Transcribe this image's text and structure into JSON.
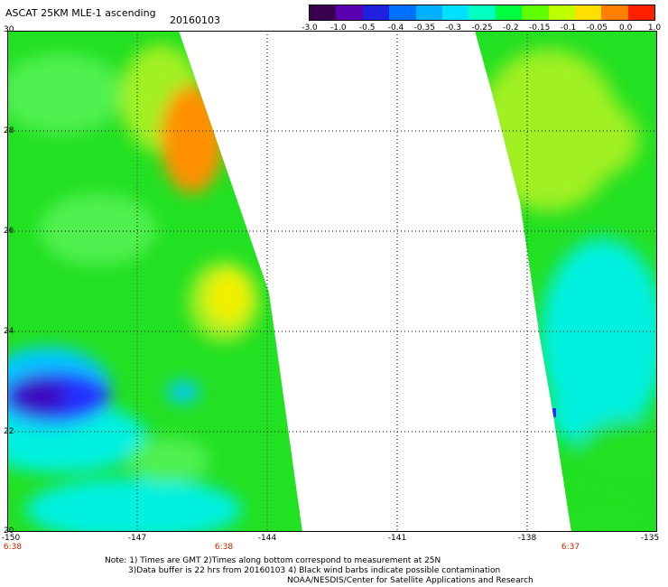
{
  "header": {
    "title": "ASCAT 25KM MLE-1 ascending",
    "date": "20160103"
  },
  "colorbar": {
    "labels": [
      "-3.0",
      "-1.0",
      "-0.5",
      "-0.4",
      "-0.35",
      "-0.3",
      "-0.25",
      "-0.2",
      "-0.15",
      "-0.1",
      "-0.05",
      "0.0",
      "1.0"
    ],
    "colors": [
      "#3a0050",
      "#5a00b0",
      "#2020e0",
      "#0070ff",
      "#00b0ff",
      "#00e0ff",
      "#00ffc0",
      "#00ff40",
      "#60ff00",
      "#c0ff00",
      "#ffe000",
      "#ff8000",
      "#ff2000"
    ]
  },
  "map": {
    "lat_labels": [
      "30",
      "28",
      "26",
      "24",
      "22",
      "20"
    ],
    "lon_labels": [
      "-150",
      "-147",
      "-144",
      "-141",
      "-138",
      "-135"
    ],
    "time_labels": [
      "6:38",
      "6:38",
      "6:37"
    ],
    "lat_range": [
      20,
      30
    ],
    "lon_range": [
      -150,
      -135
    ],
    "colors": {
      "green": "#22e022",
      "light_green": "#50f050",
      "yellow_green": "#a0f020",
      "yellow": "#f0f000",
      "orange": "#ff9000",
      "cyan": "#00f0e0",
      "light_blue": "#00c8ff",
      "blue": "#2030ff",
      "dark_blue": "#3a10c0",
      "grid": "#000000"
    }
  },
  "notes": {
    "line1": "Note: 1) Times are GMT 2)Times along bottom correspond to measurement at 25N",
    "line2": "3)Data buffer is 22 hrs from 20160103 4) Black wind barbs indicate possible contamination",
    "line3": "NOAA/NESDIS/Center for Satellite Applications and Research"
  }
}
